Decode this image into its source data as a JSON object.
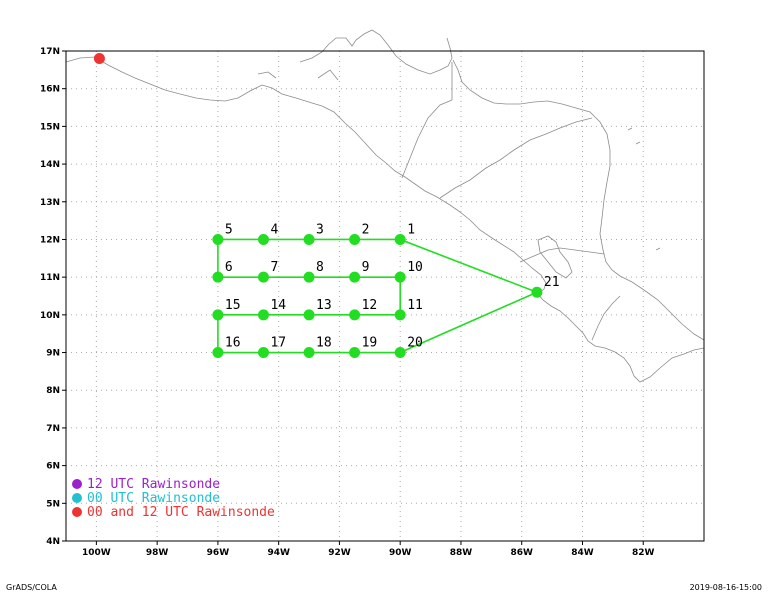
{
  "map": {
    "lon_range": [
      -101,
      -80
    ],
    "lat_range": [
      4,
      17
    ],
    "grid_lines": true,
    "lon_ticks": [
      {
        "value": -100,
        "label": "100W"
      },
      {
        "value": -98,
        "label": "98W"
      },
      {
        "value": -96,
        "label": "96W"
      },
      {
        "value": -94,
        "label": "94W"
      },
      {
        "value": -92,
        "label": "92W"
      },
      {
        "value": -90,
        "label": "90W"
      },
      {
        "value": -88,
        "label": "88W"
      },
      {
        "value": -86,
        "label": "86W"
      },
      {
        "value": -84,
        "label": "84W"
      },
      {
        "value": -82,
        "label": "82W"
      }
    ],
    "lat_ticks": [
      {
        "value": 4,
        "label": "4N"
      },
      {
        "value": 5,
        "label": "5N"
      },
      {
        "value": 6,
        "label": "6N"
      },
      {
        "value": 7,
        "label": "7N"
      },
      {
        "value": 8,
        "label": "8N"
      },
      {
        "value": 9,
        "label": "9N"
      },
      {
        "value": 10,
        "label": "10N"
      },
      {
        "value": 11,
        "label": "11N"
      },
      {
        "value": 12,
        "label": "12N"
      },
      {
        "value": 13,
        "label": "13N"
      },
      {
        "value": 14,
        "label": "14N"
      },
      {
        "value": 15,
        "label": "15N"
      },
      {
        "value": 16,
        "label": "16N"
      },
      {
        "value": 17,
        "label": "17N"
      }
    ]
  },
  "waypoints": [
    {
      "label": "1",
      "lon": -90.0,
      "lat": 12.0
    },
    {
      "label": "2",
      "lon": -91.5,
      "lat": 12.0
    },
    {
      "label": "3",
      "lon": -93.0,
      "lat": 12.0
    },
    {
      "label": "4",
      "lon": -94.5,
      "lat": 12.0
    },
    {
      "label": "5",
      "lon": -96.0,
      "lat": 12.0
    },
    {
      "label": "6",
      "lon": -96.0,
      "lat": 11.0
    },
    {
      "label": "7",
      "lon": -94.5,
      "lat": 11.0
    },
    {
      "label": "8",
      "lon": -93.0,
      "lat": 11.0
    },
    {
      "label": "9",
      "lon": -91.5,
      "lat": 11.0
    },
    {
      "label": "10",
      "lon": -90.0,
      "lat": 11.0
    },
    {
      "label": "11",
      "lon": -90.0,
      "lat": 10.0
    },
    {
      "label": "12",
      "lon": -91.5,
      "lat": 10.0
    },
    {
      "label": "13",
      "lon": -93.0,
      "lat": 10.0
    },
    {
      "label": "14",
      "lon": -94.5,
      "lat": 10.0
    },
    {
      "label": "15",
      "lon": -96.0,
      "lat": 10.0
    },
    {
      "label": "16",
      "lon": -96.0,
      "lat": 9.0
    },
    {
      "label": "17",
      "lon": -94.5,
      "lat": 9.0
    },
    {
      "label": "18",
      "lon": -93.0,
      "lat": 9.0
    },
    {
      "label": "19",
      "lon": -91.5,
      "lat": 9.0
    },
    {
      "label": "20",
      "lon": -90.0,
      "lat": 9.0
    },
    {
      "label": "21",
      "lon": -85.5,
      "lat": 10.6
    }
  ],
  "track_color": "#22dd22",
  "rawinsonde_sites": [
    {
      "lon": -99.9,
      "lat": 16.8,
      "type": "00 and 12 UTC",
      "color": "#ee3333"
    }
  ],
  "legend": [
    {
      "label": "12 UTC Rawinsonde",
      "color": "#9a22cc"
    },
    {
      "label": "00 UTC Rawinsonde",
      "color": "#22c0d0"
    },
    {
      "label": "00 and 12 UTC Rawinsonde",
      "color": "#ee3333"
    }
  ],
  "footer": {
    "left": "GrADS/COLA",
    "right": "2019-08-16-15:00"
  }
}
